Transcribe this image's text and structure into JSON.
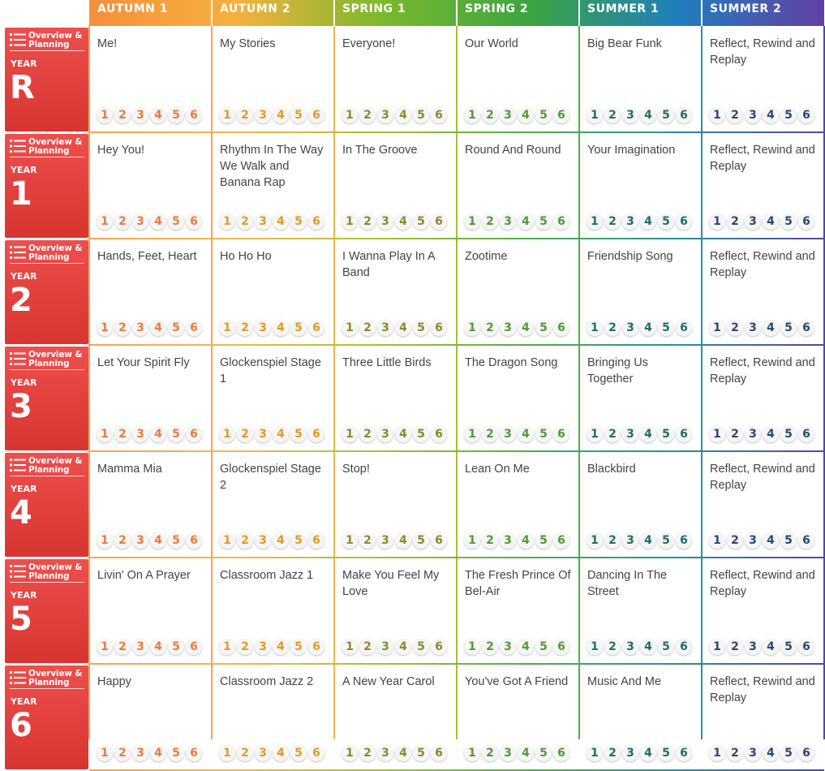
{
  "terms": [
    {
      "label": "AUTUMN 1",
      "color": "#f6a54f",
      "lesson_color": "#ec7b3c"
    },
    {
      "label": "AUTUMN 2",
      "color": "#f0b94b",
      "lesson_color": "#e39a24"
    },
    {
      "label": "SPRING 1",
      "color": "#a8bf34",
      "lesson_color": "#8c8a2a"
    },
    {
      "label": "SPRING 2",
      "color": "#4fae48",
      "lesson_color": "#539a35"
    },
    {
      "label": "SUMMER 1",
      "color": "#2a8ea0",
      "lesson_color": "#1f6e6a"
    },
    {
      "label": "SUMMER 2",
      "color": "#5248a0",
      "lesson_color": "#2b4a72"
    }
  ],
  "header_gradient": [
    "#f68f3c",
    "#f5b13e",
    "#7ab82c",
    "#3ca540",
    "#1f7fbd",
    "#6340a3"
  ],
  "overview_label": "Overview & Planning",
  "year_word": "YEAR",
  "lesson_numbers": [
    "1",
    "2",
    "3",
    "4",
    "5",
    "6"
  ],
  "years": [
    {
      "year": "R",
      "units": [
        "Me!",
        "My Stories",
        "Everyone!",
        "Our World",
        "Big Bear Funk",
        "Reflect, Rewind and Replay"
      ]
    },
    {
      "year": "1",
      "units": [
        "Hey You!",
        "Rhythm In The Way We Walk and Banana Rap",
        "In The Groove",
        "Round And Round",
        "Your Imagination",
        "Reflect, Rewind and Replay"
      ]
    },
    {
      "year": "2",
      "units": [
        "Hands, Feet, Heart",
        "Ho Ho Ho",
        "I Wanna Play In A Band",
        "Zootime",
        "Friendship Song",
        "Reflect, Rewind and Replay"
      ]
    },
    {
      "year": "3",
      "units": [
        "Let Your Spirit Fly",
        "Glockenspiel Stage 1",
        "Three Little Birds",
        "The Dragon Song",
        "Bringing Us Together",
        "Reflect, Rewind and Replay"
      ]
    },
    {
      "year": "4",
      "units": [
        "Mamma Mia",
        "Glockenspiel Stage 2",
        "Stop!",
        "Lean On Me",
        "Blackbird",
        "Reflect, Rewind and Replay"
      ]
    },
    {
      "year": "5",
      "units": [
        "Livin' On A Prayer",
        "Classroom Jazz 1",
        "Make You Feel My Love",
        "The Fresh Prince Of Bel-Air",
        "Dancing In The Street",
        "Reflect, Rewind and Replay"
      ]
    },
    {
      "year": "6",
      "units": [
        "Happy",
        "Classroom Jazz 2",
        "A New Year Carol",
        "You've Got A Friend",
        "Music And Me",
        "Reflect, Rewind and Replay"
      ]
    }
  ]
}
